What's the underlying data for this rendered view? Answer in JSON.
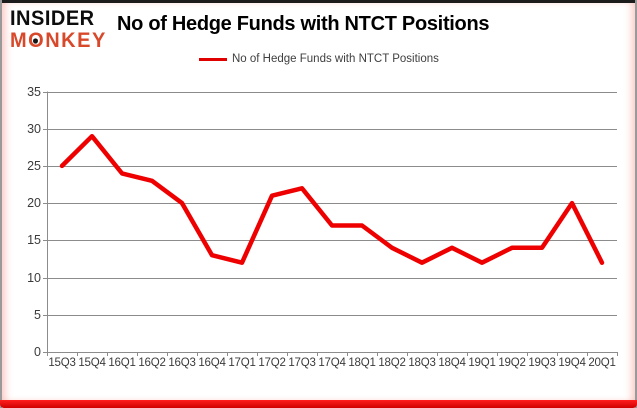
{
  "brand": {
    "line1": "INSIDER",
    "line2": "MONKEY",
    "accent_color": "#d8492b",
    "bottom_bar_color": "#e60000"
  },
  "header": {
    "title": "No of Hedge Funds with NTCT Positions"
  },
  "legend": {
    "label": "No of Hedge Funds with NTCT Positions",
    "line_color": "#e00000"
  },
  "chart_data": {
    "type": "line",
    "title": "No of Hedge Funds with NTCT Positions",
    "categories": [
      "15Q3",
      "15Q4",
      "16Q1",
      "16Q2",
      "16Q3",
      "16Q4",
      "17Q1",
      "17Q2",
      "17Q3",
      "17Q4",
      "18Q1",
      "18Q2",
      "18Q3",
      "18Q4",
      "19Q1",
      "19Q2",
      "19Q3",
      "19Q4",
      "20Q1"
    ],
    "series": [
      {
        "name": "No of Hedge Funds with NTCT Positions",
        "color": "#ee0000",
        "values": [
          25,
          29,
          24,
          23,
          20,
          13,
          12,
          21,
          22,
          17,
          17,
          14,
          12,
          14,
          12,
          14,
          14,
          20,
          12
        ]
      }
    ],
    "xlabel": "",
    "ylabel": "",
    "ylim": [
      0,
      35
    ],
    "yticks": [
      0,
      5,
      10,
      15,
      20,
      25,
      30,
      35
    ],
    "grid": true,
    "gridline_color": "#8c8c8c",
    "legend_position": "top"
  }
}
